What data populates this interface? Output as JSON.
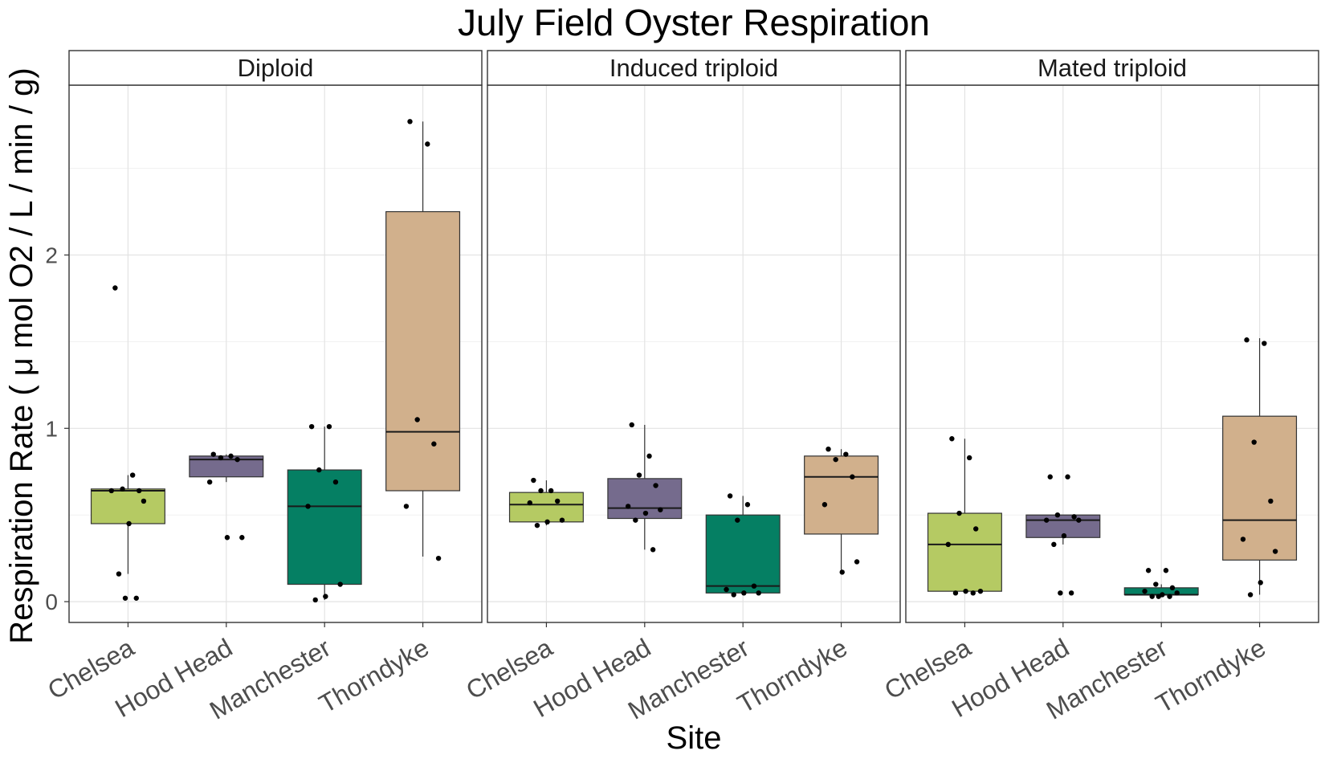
{
  "chart_data": {
    "type": "box",
    "title": "July Field Oyster Respiration",
    "xlabel": "Site",
    "ylabel": "Respiration Rate ( μ mol O2 / L / min / g)",
    "ylim": [
      -0.12,
      2.98
    ],
    "yticks": [
      0,
      1,
      2
    ],
    "grid": true,
    "categories": [
      "Chelsea",
      "Hood Head",
      "Manchester",
      "Thorndyke"
    ],
    "colors": {
      "Chelsea": "#b5ca63",
      "Hood Head": "#756b8d",
      "Manchester": "#057f63",
      "Thorndyke": "#d1b08c"
    },
    "panels": [
      {
        "name": "Diploid",
        "boxes": [
          {
            "category": "Chelsea",
            "whisker_low": 0.16,
            "q1": 0.45,
            "median": 0.64,
            "q3": 0.65,
            "whisker_high": 0.73,
            "points": [
              1.81,
              0.73,
              0.65,
              0.64,
              0.64,
              0.58,
              0.45,
              0.16,
              0.02,
              0.02
            ]
          },
          {
            "category": "Hood Head",
            "whisker_low": 0.69,
            "q1": 0.72,
            "median": 0.82,
            "q3": 0.84,
            "whisker_high": 0.85,
            "points": [
              0.85,
              0.84,
              0.83,
              0.82,
              0.69,
              0.37,
              0.37
            ]
          },
          {
            "category": "Manchester",
            "whisker_low": 0.01,
            "q1": 0.1,
            "median": 0.55,
            "q3": 0.76,
            "whisker_high": 1.01,
            "points": [
              1.01,
              1.01,
              0.76,
              0.69,
              0.55,
              0.1,
              0.03,
              0.01
            ]
          },
          {
            "category": "Thorndyke",
            "whisker_low": 0.26,
            "q1": 0.64,
            "median": 0.98,
            "q3": 2.25,
            "whisker_high": 2.77,
            "points": [
              2.77,
              2.64,
              1.05,
              0.91,
              0.55,
              0.25
            ]
          }
        ]
      },
      {
        "name": "Induced triploid",
        "boxes": [
          {
            "category": "Chelsea",
            "whisker_low": 0.44,
            "q1": 0.46,
            "median": 0.56,
            "q3": 0.63,
            "whisker_high": 0.7,
            "points": [
              0.7,
              0.64,
              0.64,
              0.58,
              0.57,
              0.47,
              0.46,
              0.44
            ]
          },
          {
            "category": "Hood Head",
            "whisker_low": 0.3,
            "q1": 0.48,
            "median": 0.54,
            "q3": 0.71,
            "whisker_high": 1.02,
            "points": [
              1.02,
              0.84,
              0.73,
              0.67,
              0.55,
              0.53,
              0.51,
              0.47,
              0.3
            ]
          },
          {
            "category": "Manchester",
            "whisker_low": 0.04,
            "q1": 0.05,
            "median": 0.09,
            "q3": 0.5,
            "whisker_high": 0.61,
            "points": [
              0.61,
              0.56,
              0.47,
              0.09,
              0.07,
              0.05,
              0.05,
              0.04
            ]
          },
          {
            "category": "Thorndyke",
            "whisker_low": 0.17,
            "q1": 0.39,
            "median": 0.72,
            "q3": 0.84,
            "whisker_high": 0.88,
            "points": [
              0.88,
              0.85,
              0.82,
              0.72,
              0.56,
              0.23,
              0.17
            ]
          }
        ]
      },
      {
        "name": "Mated triploid",
        "boxes": [
          {
            "category": "Chelsea",
            "whisker_low": 0.05,
            "q1": 0.06,
            "median": 0.33,
            "q3": 0.51,
            "whisker_high": 0.94,
            "points": [
              0.94,
              0.83,
              0.51,
              0.42,
              0.33,
              0.06,
              0.06,
              0.05,
              0.05
            ]
          },
          {
            "category": "Hood Head",
            "whisker_low": 0.33,
            "q1": 0.37,
            "median": 0.47,
            "q3": 0.5,
            "whisker_high": 0.5,
            "points": [
              0.72,
              0.72,
              0.5,
              0.49,
              0.47,
              0.47,
              0.38,
              0.33,
              0.05,
              0.05
            ]
          },
          {
            "category": "Manchester",
            "whisker_low": 0.03,
            "q1": 0.04,
            "median": 0.04,
            "q3": 0.08,
            "whisker_high": 0.1,
            "points": [
              0.18,
              0.18,
              0.1,
              0.08,
              0.06,
              0.05,
              0.04,
              0.03,
              0.03,
              0.03
            ]
          },
          {
            "category": "Thorndyke",
            "whisker_low": 0.04,
            "q1": 0.24,
            "median": 0.47,
            "q3": 1.07,
            "whisker_high": 1.52,
            "points": [
              1.51,
              1.49,
              0.92,
              0.58,
              0.36,
              0.29,
              0.11,
              0.04
            ]
          }
        ]
      }
    ]
  }
}
